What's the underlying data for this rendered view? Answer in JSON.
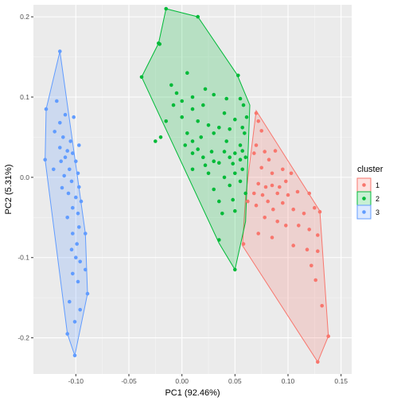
{
  "chart_data": {
    "type": "scatter",
    "title": "",
    "xlabel": "PC1 (92.46%)",
    "ylabel": "PC2 (5.31%)",
    "xlim": [
      -0.14,
      0.16
    ],
    "ylim": [
      -0.245,
      0.215
    ],
    "x_ticks": [
      -0.1,
      -0.05,
      0.0,
      0.05,
      0.1,
      0.15
    ],
    "x_tick_labels": [
      "-0.10",
      "-0.05",
      "0.00",
      "0.05",
      "0.10",
      "0.15"
    ],
    "y_ticks": [
      -0.2,
      -0.1,
      0.0,
      0.1,
      0.2
    ],
    "y_tick_labels": [
      "-0.2",
      "-0.1",
      "0.0",
      "0.1",
      "0.2"
    ],
    "grid": true,
    "legend": {
      "title": "cluster",
      "placement": "right",
      "entries": [
        "1",
        "2",
        "3"
      ]
    },
    "series": [
      {
        "name": "1",
        "color": "#F8766D",
        "hull": [
          [
            0.07,
            0.083
          ],
          [
            0.13,
            -0.042
          ],
          [
            0.138,
            -0.198
          ],
          [
            0.128,
            -0.23
          ],
          [
            0.057,
            -0.085
          ],
          [
            0.06,
            -0.024
          ]
        ],
        "points": [
          [
            0.07,
            0.08
          ],
          [
            0.072,
            0.07
          ],
          [
            0.075,
            0.058
          ],
          [
            0.07,
            0.04
          ],
          [
            0.068,
            0.03
          ],
          [
            0.078,
            0.032
          ],
          [
            0.088,
            0.033
          ],
          [
            0.082,
            0.022
          ],
          [
            0.095,
            0.01
          ],
          [
            0.103,
            0.005
          ],
          [
            0.075,
            0.012
          ],
          [
            0.085,
            0.005
          ],
          [
            0.072,
            -0.008
          ],
          [
            0.079,
            -0.012
          ],
          [
            0.085,
            -0.01
          ],
          [
            0.092,
            -0.012
          ],
          [
            0.098,
            -0.005
          ],
          [
            0.068,
            -0.02
          ],
          [
            0.076,
            -0.022
          ],
          [
            0.09,
            -0.02
          ],
          [
            0.1,
            -0.022
          ],
          [
            0.109,
            -0.018
          ],
          [
            0.12,
            -0.02
          ],
          [
            0.062,
            -0.03
          ],
          [
            0.07,
            -0.035
          ],
          [
            0.081,
            -0.03
          ],
          [
            0.086,
            -0.04
          ],
          [
            0.095,
            -0.032
          ],
          [
            0.105,
            -0.04
          ],
          [
            0.115,
            -0.045
          ],
          [
            0.125,
            -0.038
          ],
          [
            0.13,
            -0.043
          ],
          [
            0.078,
            -0.05
          ],
          [
            0.09,
            -0.055
          ],
          [
            0.098,
            -0.06
          ],
          [
            0.11,
            -0.06
          ],
          [
            0.12,
            -0.065
          ],
          [
            0.128,
            -0.072
          ],
          [
            0.058,
            -0.083
          ],
          [
            0.072,
            -0.07
          ],
          [
            0.085,
            -0.075
          ],
          [
            0.105,
            -0.085
          ],
          [
            0.118,
            -0.09
          ],
          [
            0.122,
            -0.11
          ],
          [
            0.128,
            -0.092
          ],
          [
            0.126,
            -0.128
          ],
          [
            0.132,
            -0.16
          ],
          [
            0.138,
            -0.198
          ],
          [
            0.128,
            -0.23
          ]
        ]
      },
      {
        "name": "2",
        "color": "#00BA38",
        "hull": [
          [
            -0.015,
            0.21
          ],
          [
            0.015,
            0.2
          ],
          [
            0.052,
            0.128
          ],
          [
            0.064,
            0.09
          ],
          [
            0.06,
            -0.055
          ],
          [
            0.05,
            -0.115
          ],
          [
            0.035,
            -0.082
          ],
          [
            -0.038,
            0.125
          ],
          [
            -0.022,
            0.167
          ]
        ],
        "points": [
          [
            -0.015,
            0.21
          ],
          [
            0.015,
            0.2
          ],
          [
            -0.022,
            0.167
          ],
          [
            -0.021,
            0.166
          ],
          [
            -0.038,
            0.125
          ],
          [
            -0.01,
            0.115
          ],
          [
            -0.005,
            0.105
          ],
          [
            0.005,
            0.13
          ],
          [
            0.01,
            0.1
          ],
          [
            0.022,
            0.11
          ],
          [
            0.03,
            0.103
          ],
          [
            0.042,
            0.098
          ],
          [
            0.053,
            0.127
          ],
          [
            0.055,
            0.098
          ],
          [
            0.058,
            0.09
          ],
          [
            -0.008,
            0.09
          ],
          [
            0.0,
            0.095
          ],
          [
            0.01,
            0.085
          ],
          [
            0.02,
            0.09
          ],
          [
            0.04,
            0.08
          ],
          [
            0.05,
            0.072
          ],
          [
            0.061,
            0.075
          ],
          [
            -0.015,
            0.07
          ],
          [
            0.0,
            0.075
          ],
          [
            0.015,
            0.07
          ],
          [
            0.025,
            0.065
          ],
          [
            0.035,
            0.062
          ],
          [
            0.045,
            0.06
          ],
          [
            0.057,
            0.062
          ],
          [
            -0.02,
            0.05
          ],
          [
            0.005,
            0.055
          ],
          [
            0.01,
            0.045
          ],
          [
            0.018,
            0.05
          ],
          [
            0.03,
            0.055
          ],
          [
            0.042,
            0.045
          ],
          [
            0.059,
            0.055
          ],
          [
            0.003,
            0.04
          ],
          [
            0.01,
            0.03
          ],
          [
            0.015,
            0.035
          ],
          [
            0.028,
            0.032
          ],
          [
            0.04,
            0.032
          ],
          [
            0.055,
            0.04
          ],
          [
            -0.025,
            0.045
          ],
          [
            0.02,
            0.025
          ],
          [
            0.03,
            0.02
          ],
          [
            0.045,
            0.025
          ],
          [
            0.05,
            0.03
          ],
          [
            0.057,
            0.033
          ],
          [
            0.01,
            0.01
          ],
          [
            0.022,
            0.015
          ],
          [
            0.035,
            0.018
          ],
          [
            0.048,
            0.017
          ],
          [
            0.055,
            0.022
          ],
          [
            0.06,
            0.025
          ],
          [
            0.025,
            0.005
          ],
          [
            0.04,
            0.0
          ],
          [
            0.05,
            0.005
          ],
          [
            0.057,
            0.01
          ],
          [
            0.03,
            -0.015
          ],
          [
            0.045,
            -0.01
          ],
          [
            0.055,
            -0.005
          ],
          [
            0.035,
            -0.03
          ],
          [
            0.048,
            -0.028
          ],
          [
            0.06,
            -0.02
          ],
          [
            0.038,
            -0.045
          ],
          [
            0.05,
            -0.042
          ],
          [
            0.035,
            -0.078
          ],
          [
            0.05,
            -0.115
          ]
        ]
      },
      {
        "name": "3",
        "color": "#619CFF",
        "hull": [
          [
            -0.115,
            0.157
          ],
          [
            -0.128,
            0.085
          ],
          [
            -0.129,
            0.022
          ],
          [
            -0.108,
            -0.195
          ],
          [
            -0.101,
            -0.222
          ],
          [
            -0.089,
            -0.145
          ],
          [
            -0.091,
            -0.07
          ]
        ],
        "points": [
          [
            -0.115,
            0.157
          ],
          [
            -0.118,
            0.095
          ],
          [
            -0.128,
            0.085
          ],
          [
            -0.11,
            0.078
          ],
          [
            -0.115,
            0.068
          ],
          [
            -0.102,
            0.075
          ],
          [
            -0.12,
            0.057
          ],
          [
            -0.112,
            0.05
          ],
          [
            -0.105,
            0.045
          ],
          [
            -0.097,
            0.04
          ],
          [
            -0.115,
            0.037
          ],
          [
            -0.108,
            0.033
          ],
          [
            -0.103,
            0.03
          ],
          [
            -0.11,
            0.025
          ],
          [
            -0.1,
            0.02
          ],
          [
            -0.114,
            0.02
          ],
          [
            -0.106,
            0.01
          ],
          [
            -0.098,
            0.005
          ],
          [
            -0.111,
            0.002
          ],
          [
            -0.104,
            -0.005
          ],
          [
            -0.097,
            -0.012
          ],
          [
            -0.113,
            -0.013
          ],
          [
            -0.107,
            -0.02
          ],
          [
            -0.1,
            -0.025
          ],
          [
            -0.095,
            -0.03
          ],
          [
            -0.103,
            -0.038
          ],
          [
            -0.098,
            -0.045
          ],
          [
            -0.108,
            -0.05
          ],
          [
            -0.097,
            -0.062
          ],
          [
            -0.091,
            -0.07
          ],
          [
            -0.103,
            -0.07
          ],
          [
            -0.099,
            -0.083
          ],
          [
            -0.104,
            -0.09
          ],
          [
            -0.1,
            -0.1
          ],
          [
            -0.096,
            -0.105
          ],
          [
            -0.091,
            -0.115
          ],
          [
            -0.103,
            -0.12
          ],
          [
            -0.098,
            -0.13
          ],
          [
            -0.089,
            -0.145
          ],
          [
            -0.106,
            -0.155
          ],
          [
            -0.096,
            -0.165
          ],
          [
            -0.101,
            -0.18
          ],
          [
            -0.108,
            -0.195
          ],
          [
            -0.101,
            -0.222
          ],
          [
            -0.129,
            0.022
          ],
          [
            -0.121,
            0.01
          ]
        ]
      }
    ]
  }
}
